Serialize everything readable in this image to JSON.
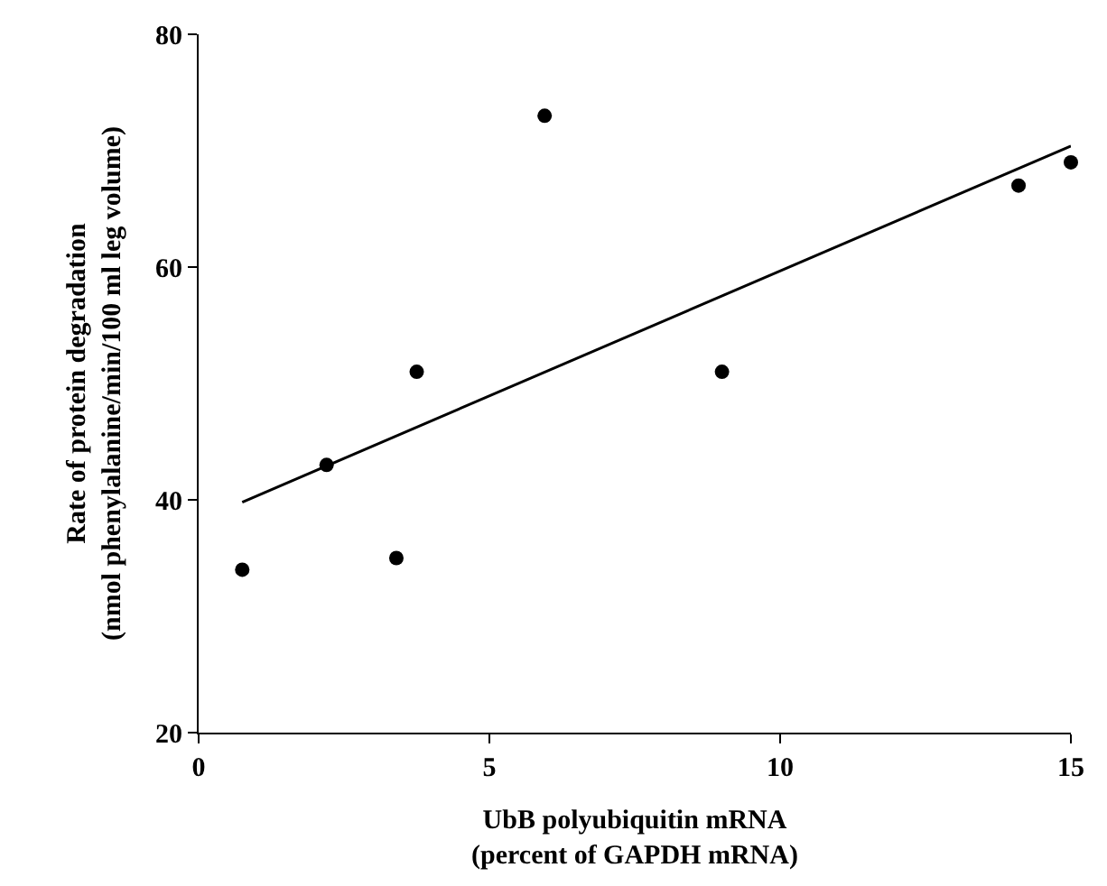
{
  "chart_data": {
    "type": "scatter",
    "xlabel": "UbB polyubiquitin mRNA\n(percent of GAPDH mRNA)",
    "ylabel": "Rate of protein degradation\n(nmol phenylalanine/min/100 ml leg volume)",
    "xlim": [
      0,
      15
    ],
    "ylim": [
      20,
      80
    ],
    "xticks": [
      0,
      5,
      10,
      15
    ],
    "yticks": [
      20,
      40,
      60,
      80
    ],
    "marker": "circle",
    "series": [
      {
        "color": "#000000",
        "x": [
          0.75,
          2.2,
          3.4,
          3.75,
          5.95,
          9.0,
          14.1,
          15.0
        ],
        "values": [
          34,
          43,
          35,
          51,
          73,
          51,
          67,
          69
        ]
      },
      {
        "type": "line",
        "color": "#000000",
        "x": [
          0.75,
          15.0
        ],
        "values": [
          39.8,
          70.4
        ],
        "marker": "none",
        "line_style": "solid"
      }
    ]
  }
}
